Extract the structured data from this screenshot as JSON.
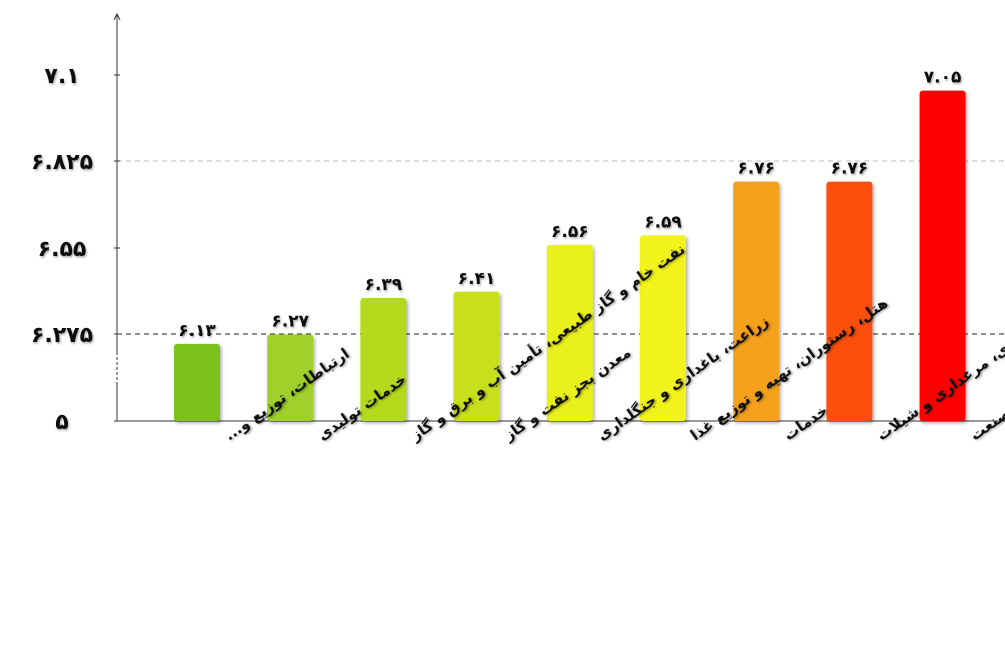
{
  "chart_data": {
    "type": "bar",
    "title": "",
    "xlabel": "",
    "ylabel": "",
    "ylim": [
      5.0,
      7.2
    ],
    "y_ticks": [
      {
        "value": 5.0,
        "label": "۵"
      },
      {
        "value": 6.275,
        "label": "۶.۲۷۵"
      },
      {
        "value": 6.55,
        "label": "۶.۵۵"
      },
      {
        "value": 6.825,
        "label": "۶.۸۲۵"
      },
      {
        "value": 7.1,
        "label": "۷.۱"
      }
    ],
    "gridlines": [
      6.275,
      6.825
    ],
    "grid": true,
    "legend": "none",
    "categories": [
      "ارتباطات، توزیع و...",
      "خدمات تولیدی",
      "نفت خام و گاز طبیعی، تأمین آب و برق و گاز",
      "معدن بجز نفت و گاز",
      "زراعت، باغداری و جنگلداری",
      "هتل، رستوران، تهیه و توزیع غذا",
      "خدمات",
      "دامداری، مرغداری و شیلات",
      "صنعت"
    ],
    "values": [
      6.13,
      6.27,
      6.39,
      6.41,
      6.56,
      6.59,
      6.76,
      6.76,
      7.05
    ],
    "value_labels": [
      "۶.۱۳",
      "۶.۲۷",
      "۶.۳۹",
      "۶.۴۱",
      "۶.۵۶",
      "۶.۵۹",
      "۶.۷۶",
      "۶.۷۶",
      "۷.۰۵"
    ],
    "colors": [
      "#7dc21e",
      "#9fd12a",
      "#b5d91c",
      "#c8e01c",
      "#eaf01c",
      "#f2f21c",
      "#f6a11a",
      "#fc4f0a",
      "#ff0000"
    ]
  }
}
